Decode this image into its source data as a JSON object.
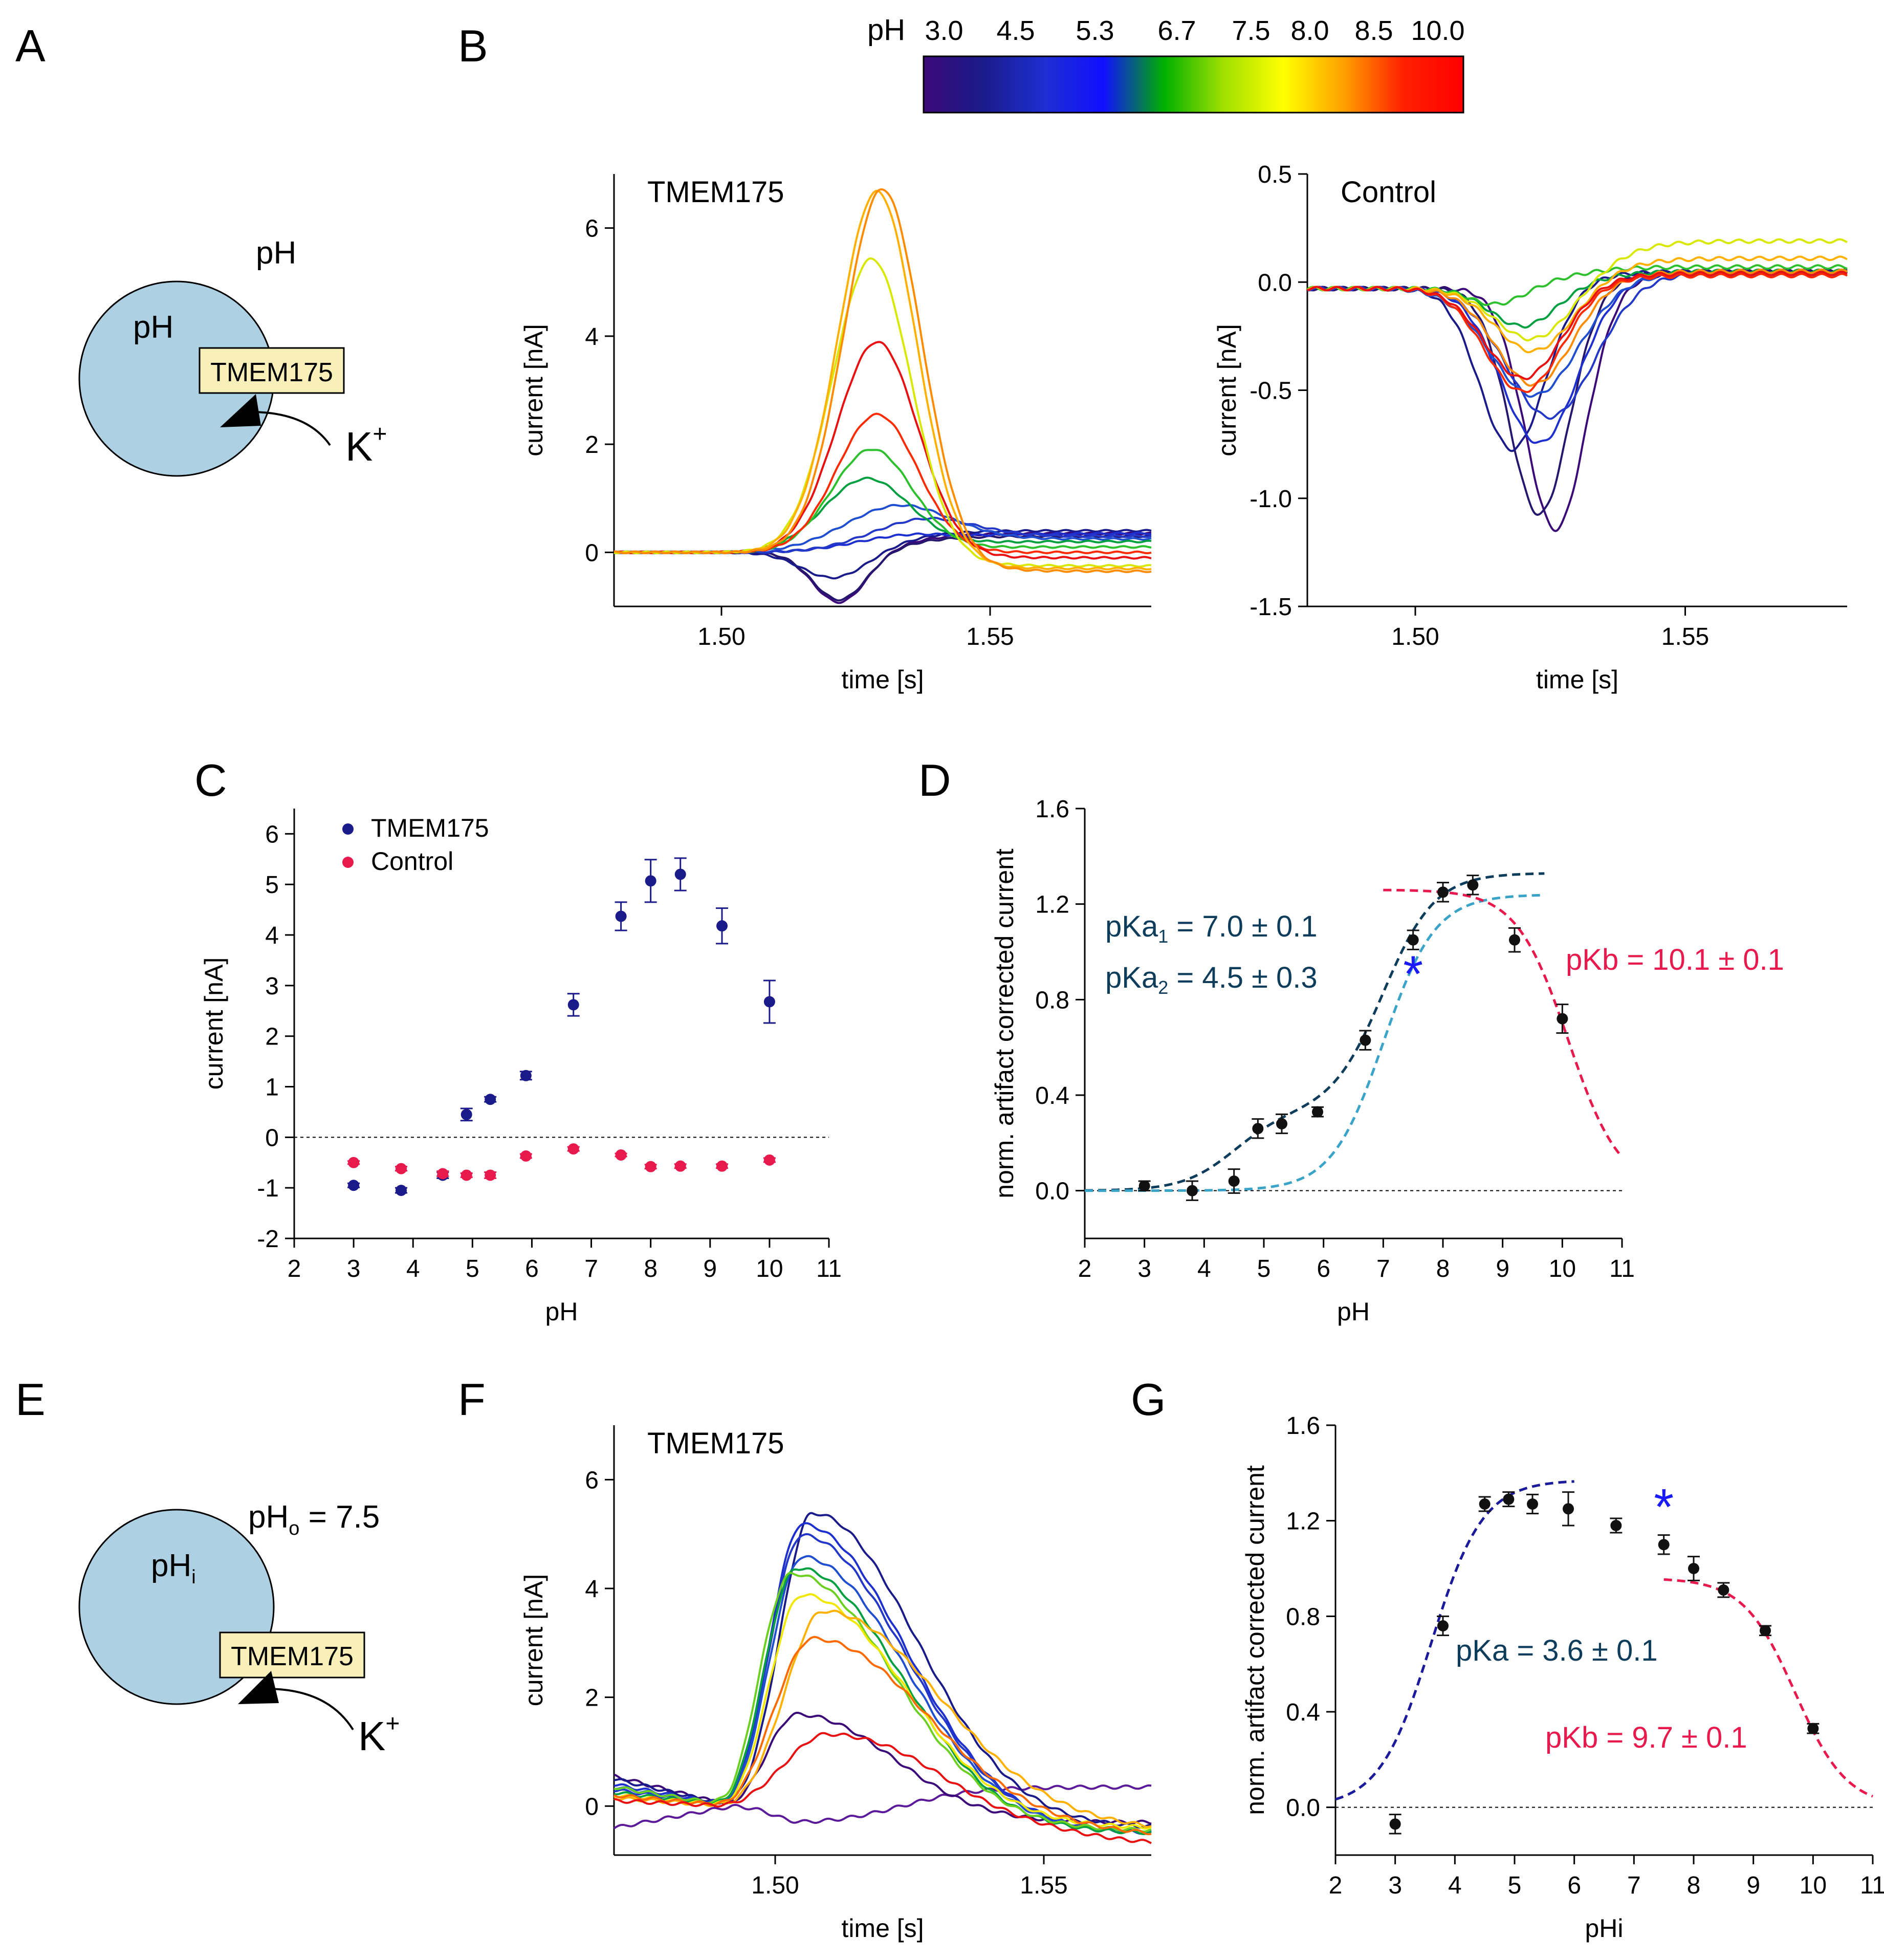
{
  "panel_letters": [
    "A",
    "B",
    "C",
    "D",
    "E",
    "F",
    "G"
  ],
  "colorbar": {
    "label": "pH",
    "ticks": [
      "3.0",
      "4.5",
      "5.3",
      "6.7",
      "7.5",
      "8.0",
      "8.5",
      "10.0"
    ],
    "colors": [
      "#3b0a78",
      "#1a1a8a",
      "#1e2fd0",
      "#1010ff",
      "#00b000",
      "#a0e000",
      "#ffff00",
      "#ffa000",
      "#ff2000",
      "#ff0000"
    ]
  },
  "diagram_A": {
    "outside_label": "pH",
    "inside_label": "pH",
    "box_label": "TMEM175",
    "ion": "K",
    "ion_sup": "+"
  },
  "diagram_E": {
    "outside_label": "pH",
    "outside_sub": "o",
    "outside_value": " = 7.5",
    "inside_label": "pH",
    "inside_sub": "i",
    "box_label": "TMEM175",
    "ion": "K",
    "ion_sup": "+"
  },
  "text": {
    "pka1_label": "pKa",
    "pka1_sub": "1",
    "pka1_value": " = 7.0 ± 0.1",
    "pka2_label": "pKa",
    "pka2_sub": "2",
    "pka2_value": " = 4.5 ± 0.3",
    "pkb_D": "pKb = 10.1 ± 0.1",
    "pka_G": "pKa = 3.6 ± 0.1",
    "pkb_G": "pKb = 9.7 ± 0.1",
    "star": "*"
  },
  "chart_data": [
    {
      "panel": "B-left",
      "type": "line",
      "title": "TMEM175",
      "xlabel": "time [s]",
      "ylabel": "current [nA]",
      "xlim": [
        1.48,
        1.58
      ],
      "ylim": [
        -1.0,
        7.0
      ],
      "xticks": [
        1.5,
        1.55
      ],
      "xtick_labels": [
        "1.50",
        "1.55"
      ],
      "yticks": [
        0,
        2,
        4,
        6
      ],
      "ytick_labels": [
        "0",
        "2",
        "4",
        "6"
      ],
      "baseline_end": 1.512,
      "series": [
        {
          "pH": 3.0,
          "color": "#3b0a78",
          "amp": -0.95,
          "tpeak": 1.522,
          "sig": 0.005,
          "late": 0.35
        },
        {
          "pH": 3.8,
          "color": "#25166e",
          "amp": -0.9,
          "tpeak": 1.522,
          "sig": 0.005,
          "late": 0.3
        },
        {
          "pH": 4.5,
          "color": "#1a1a8a",
          "amp": -0.5,
          "tpeak": 1.521,
          "sig": 0.006,
          "late": 0.4
        },
        {
          "pH": 4.9,
          "color": "#1e2fd0",
          "amp": 0.3,
          "tpeak": 1.535,
          "sig": 0.01,
          "late": 0.35
        },
        {
          "pH": 5.3,
          "color": "#2338c8",
          "amp": 0.6,
          "tpeak": 1.538,
          "sig": 0.01,
          "late": 0.3
        },
        {
          "pH": 5.9,
          "color": "#1f4fd0",
          "amp": 0.85,
          "tpeak": 1.533,
          "sig": 0.01,
          "late": 0.25
        },
        {
          "pH": 6.7,
          "color": "#00a040",
          "amp": 1.35,
          "tpeak": 1.527,
          "sig": 0.008,
          "late": 0.2
        },
        {
          "pH": 7.0,
          "color": "#2cc02c",
          "amp": 1.9,
          "tpeak": 1.528,
          "sig": 0.0075,
          "late": 0.1
        },
        {
          "pH": 9.2,
          "color": "#ff2a00",
          "amp": 2.55,
          "tpeak": 1.529,
          "sig": 0.0075,
          "late": 0.0
        },
        {
          "pH": 10.0,
          "color": "#e81010",
          "amp": 3.9,
          "tpeak": 1.529,
          "sig": 0.0075,
          "late": -0.1
        },
        {
          "pH": 8.0,
          "color": "#d8e800",
          "amp": 5.45,
          "tpeak": 1.528,
          "sig": 0.0072,
          "late": -0.25
        },
        {
          "pH": 8.5,
          "color": "#ffb000",
          "amp": 6.7,
          "tpeak": 1.529,
          "sig": 0.0072,
          "late": -0.3
        },
        {
          "pH": 7.5,
          "color": "#ff8c00",
          "amp": 6.75,
          "tpeak": 1.53,
          "sig": 0.0072,
          "late": -0.35
        }
      ]
    },
    {
      "panel": "B-right",
      "type": "line",
      "title": "Control",
      "xlabel": "time [s]",
      "ylabel": "current [nA]",
      "xlim": [
        1.48,
        1.58
      ],
      "ylim": [
        -1.5,
        0.5
      ],
      "xticks": [
        1.5,
        1.55
      ],
      "xtick_labels": [
        "1.50",
        "1.55"
      ],
      "yticks": [
        -1.5,
        -1.0,
        -0.5,
        0.0,
        0.5
      ],
      "ytick_labels": [
        "-1.5",
        "-1.0",
        "-0.5",
        "0.0",
        "0.5"
      ],
      "baseline": -0.03,
      "series": [
        {
          "pH": 3.0,
          "color": "#3b0a78",
          "amp": -1.12,
          "tpeak": 1.526,
          "sig": 0.0055,
          "late": 0.08
        },
        {
          "pH": 3.8,
          "color": "#25166e",
          "amp": -1.05,
          "tpeak": 1.523,
          "sig": 0.0055,
          "late": 0.08
        },
        {
          "pH": 4.5,
          "color": "#1a1a8a",
          "amp": -0.75,
          "tpeak": 1.518,
          "sig": 0.006,
          "late": 0.08
        },
        {
          "pH": 4.9,
          "color": "#1e2fd0",
          "amp": -0.72,
          "tpeak": 1.523,
          "sig": 0.007,
          "late": 0.07
        },
        {
          "pH": 5.3,
          "color": "#2338c8",
          "amp": -0.6,
          "tpeak": 1.525,
          "sig": 0.008,
          "late": 0.07
        },
        {
          "pH": 5.9,
          "color": "#1f4fd0",
          "amp": -0.5,
          "tpeak": 1.522,
          "sig": 0.008,
          "late": 0.07
        },
        {
          "pH": 6.7,
          "color": "#00a040",
          "amp": -0.18,
          "tpeak": 1.52,
          "sig": 0.006,
          "late": 0.08
        },
        {
          "pH": 7.0,
          "color": "#2cc02c",
          "amp": -0.08,
          "tpeak": 1.515,
          "sig": 0.005,
          "late": 0.1
        },
        {
          "pH": 7.5,
          "color": "#ff8c00",
          "amp": -0.45,
          "tpeak": 1.522,
          "sig": 0.007,
          "late": 0.08
        },
        {
          "pH": 8.0,
          "color": "#d8e800",
          "amp": -0.25,
          "tpeak": 1.522,
          "sig": 0.007,
          "late": 0.22
        },
        {
          "pH": 8.5,
          "color": "#ffb000",
          "amp": -0.3,
          "tpeak": 1.522,
          "sig": 0.007,
          "late": 0.14
        },
        {
          "pH": 9.2,
          "color": "#ff2a00",
          "amp": -0.48,
          "tpeak": 1.52,
          "sig": 0.007,
          "late": 0.06
        },
        {
          "pH": 10.0,
          "color": "#e81010",
          "amp": -0.42,
          "tpeak": 1.52,
          "sig": 0.007,
          "late": 0.07
        }
      ]
    },
    {
      "panel": "C",
      "type": "scatter",
      "xlabel": "pH",
      "ylabel": "current [nA]",
      "xlim": [
        2,
        11
      ],
      "ylim": [
        -2,
        6.5
      ],
      "xticks": [
        2,
        3,
        4,
        5,
        6,
        7,
        8,
        9,
        10,
        11
      ],
      "yticks": [
        -2,
        -1,
        0,
        1,
        2,
        3,
        4,
        5,
        6
      ],
      "zero_line": true,
      "legend": [
        "TMEM175",
        "Control"
      ],
      "series": [
        {
          "name": "TMEM175",
          "color": "#1a1a8a",
          "x": [
            3.0,
            3.8,
            4.5,
            4.9,
            5.3,
            5.9,
            6.7,
            7.5,
            8.0,
            8.5,
            9.2,
            10.0
          ],
          "y": [
            -0.95,
            -1.05,
            -0.75,
            0.45,
            0.75,
            1.22,
            2.62,
            4.37,
            5.07,
            5.2,
            4.18,
            2.68
          ],
          "err": [
            0.04,
            0.05,
            0.06,
            0.12,
            0.05,
            0.08,
            0.22,
            0.28,
            0.42,
            0.32,
            0.35,
            0.42
          ]
        },
        {
          "name": "Control",
          "color": "#e8194d",
          "x": [
            3.0,
            3.8,
            4.5,
            4.9,
            5.3,
            5.9,
            6.7,
            7.5,
            8.0,
            8.5,
            9.2,
            10.0
          ],
          "y": [
            -0.5,
            -0.62,
            -0.72,
            -0.75,
            -0.75,
            -0.37,
            -0.23,
            -0.35,
            -0.58,
            -0.57,
            -0.57,
            -0.45
          ],
          "err": [
            0.03,
            0.04,
            0.05,
            0.04,
            0.06,
            0.04,
            0.04,
            0.03,
            0.04,
            0.04,
            0.04,
            0.04
          ]
        }
      ]
    },
    {
      "panel": "D",
      "type": "scatter",
      "xlabel": "pH",
      "ylabel": "norm. artifact corrected current",
      "xlim": [
        2,
        11
      ],
      "ylim": [
        -0.2,
        1.6
      ],
      "xticks": [
        2,
        3,
        4,
        5,
        6,
        7,
        8,
        9,
        10,
        11
      ],
      "yticks": [
        0.0,
        0.4,
        0.8,
        1.2,
        1.6
      ],
      "zero_line": true,
      "points": {
        "x": [
          3.0,
          3.8,
          4.5,
          4.9,
          5.3,
          5.9,
          6.7,
          7.5,
          8.0,
          8.5,
          9.2,
          10.0
        ],
        "y": [
          0.02,
          0.0,
          0.04,
          0.26,
          0.28,
          0.33,
          0.63,
          1.05,
          1.25,
          1.28,
          1.05,
          0.72
        ],
        "err": [
          0.02,
          0.04,
          0.05,
          0.04,
          0.04,
          0.02,
          0.04,
          0.04,
          0.04,
          0.04,
          0.05,
          0.06
        ]
      },
      "fits": [
        {
          "name": "two-pKa fit",
          "color": "#0e3d5c",
          "model": "two_pka",
          "A1": 0.33,
          "pKa2": 4.5,
          "A2": 1.0,
          "pKa1": 7.0,
          "xmin": 2.0,
          "xmax": 9.7
        },
        {
          "name": "single-pKa fit",
          "color": "#3aa3c8",
          "model": "pka",
          "A": 1.24,
          "pKa": 7.0,
          "xmin": 2.0,
          "xmax": 9.7
        },
        {
          "name": "pKb fit",
          "color": "#e8194d",
          "model": "pkb",
          "A": 1.26,
          "pKb": 10.1,
          "xmin": 7.0,
          "xmax": 11.0
        }
      ],
      "star_at": [
        7.5,
        0.92
      ]
    },
    {
      "panel": "F",
      "type": "line",
      "title": "TMEM175",
      "xlabel": "time [s]",
      "ylabel": "current [nA]",
      "xlim": [
        1.47,
        1.57
      ],
      "ylim": [
        -0.9,
        7.0
      ],
      "xticks": [
        1.5,
        1.55
      ],
      "xtick_labels": [
        "1.50",
        "1.55"
      ],
      "yticks": [
        0,
        2,
        4,
        6
      ],
      "ytick_labels": [
        "0",
        "2",
        "4",
        "6"
      ],
      "tzero": 1.492,
      "series": [
        {
          "pH": 3.0,
          "color": "#5a1a9a",
          "amp": -0.3,
          "tpeak": 1.505,
          "sig": 0.005,
          "late": 0.35,
          "pre": -0.4
        },
        {
          "pH": 3.8,
          "color": "#3b0a78",
          "amp": 1.7,
          "tpeak": 1.504,
          "sig": 0.0055,
          "late": -0.3,
          "pre": 0.55
        },
        {
          "pH": 4.5,
          "color": "#1a1a8a",
          "amp": 5.4,
          "tpeak": 1.507,
          "sig": 0.006,
          "late": -0.4,
          "pre": 0.5
        },
        {
          "pH": 4.9,
          "color": "#1e2fd0",
          "amp": 5.2,
          "tpeak": 1.505,
          "sig": 0.006,
          "late": -0.5,
          "pre": 0.4
        },
        {
          "pH": 5.3,
          "color": "#2338c8",
          "amp": 5.0,
          "tpeak": 1.505,
          "sig": 0.006,
          "late": -0.5,
          "pre": 0.3
        },
        {
          "pH": 5.9,
          "color": "#1f4fd0",
          "amp": 4.6,
          "tpeak": 1.505,
          "sig": 0.006,
          "late": -0.5,
          "pre": 0.35
        },
        {
          "pH": 6.7,
          "color": "#00a040",
          "amp": 4.4,
          "tpeak": 1.504,
          "sig": 0.006,
          "late": -0.5,
          "pre": 0.25
        },
        {
          "pH": 7.5,
          "color": "#6cd020",
          "amp": 4.3,
          "tpeak": 1.503,
          "sig": 0.006,
          "late": -0.45,
          "pre": 0.35
        },
        {
          "pH": 8.0,
          "color": "#f0e800",
          "amp": 3.9,
          "tpeak": 1.505,
          "sig": 0.006,
          "late": -0.4,
          "pre": 0.2
        },
        {
          "pH": 8.5,
          "color": "#ffb000",
          "amp": 3.6,
          "tpeak": 1.509,
          "sig": 0.007,
          "late": -0.45,
          "pre": 0.15
        },
        {
          "pH": 9.2,
          "color": "#ff6a00",
          "amp": 3.1,
          "tpeak": 1.507,
          "sig": 0.007,
          "late": -0.55,
          "pre": 0.2
        },
        {
          "pH": 10.0,
          "color": "#e81010",
          "amp": 1.35,
          "tpeak": 1.51,
          "sig": 0.008,
          "late": -0.75,
          "pre": 0.1
        }
      ]
    },
    {
      "panel": "G",
      "type": "scatter",
      "xlabel": "pHi",
      "ylabel": "norm. artifact corrected current",
      "xlim": [
        2,
        11
      ],
      "ylim": [
        -0.2,
        1.6
      ],
      "xticks": [
        2,
        3,
        4,
        5,
        6,
        7,
        8,
        9,
        10,
        11
      ],
      "yticks": [
        0.0,
        0.4,
        0.8,
        1.2,
        1.6
      ],
      "zero_line": true,
      "points": {
        "x": [
          3.0,
          3.8,
          4.5,
          4.9,
          5.3,
          5.9,
          6.7,
          7.5,
          8.0,
          8.5,
          9.2,
          10.0
        ],
        "y": [
          -0.07,
          0.76,
          1.27,
          1.29,
          1.27,
          1.25,
          1.18,
          1.1,
          1.0,
          0.91,
          0.74,
          0.33
        ],
        "err": [
          0.04,
          0.04,
          0.03,
          0.03,
          0.04,
          0.07,
          0.03,
          0.04,
          0.05,
          0.03,
          0.02,
          0.02
        ]
      },
      "fits": [
        {
          "name": "pKa fit",
          "color": "#1a1a9a",
          "model": "pka",
          "A": 1.37,
          "pKa": 3.6,
          "xmin": 2.0,
          "xmax": 6.0
        },
        {
          "name": "pKb fit",
          "color": "#e8194d",
          "model": "pkb",
          "A": 0.96,
          "pKb": 9.7,
          "xmin": 7.5,
          "xmax": 11.0
        }
      ],
      "star_at": [
        7.5,
        1.27
      ]
    }
  ]
}
